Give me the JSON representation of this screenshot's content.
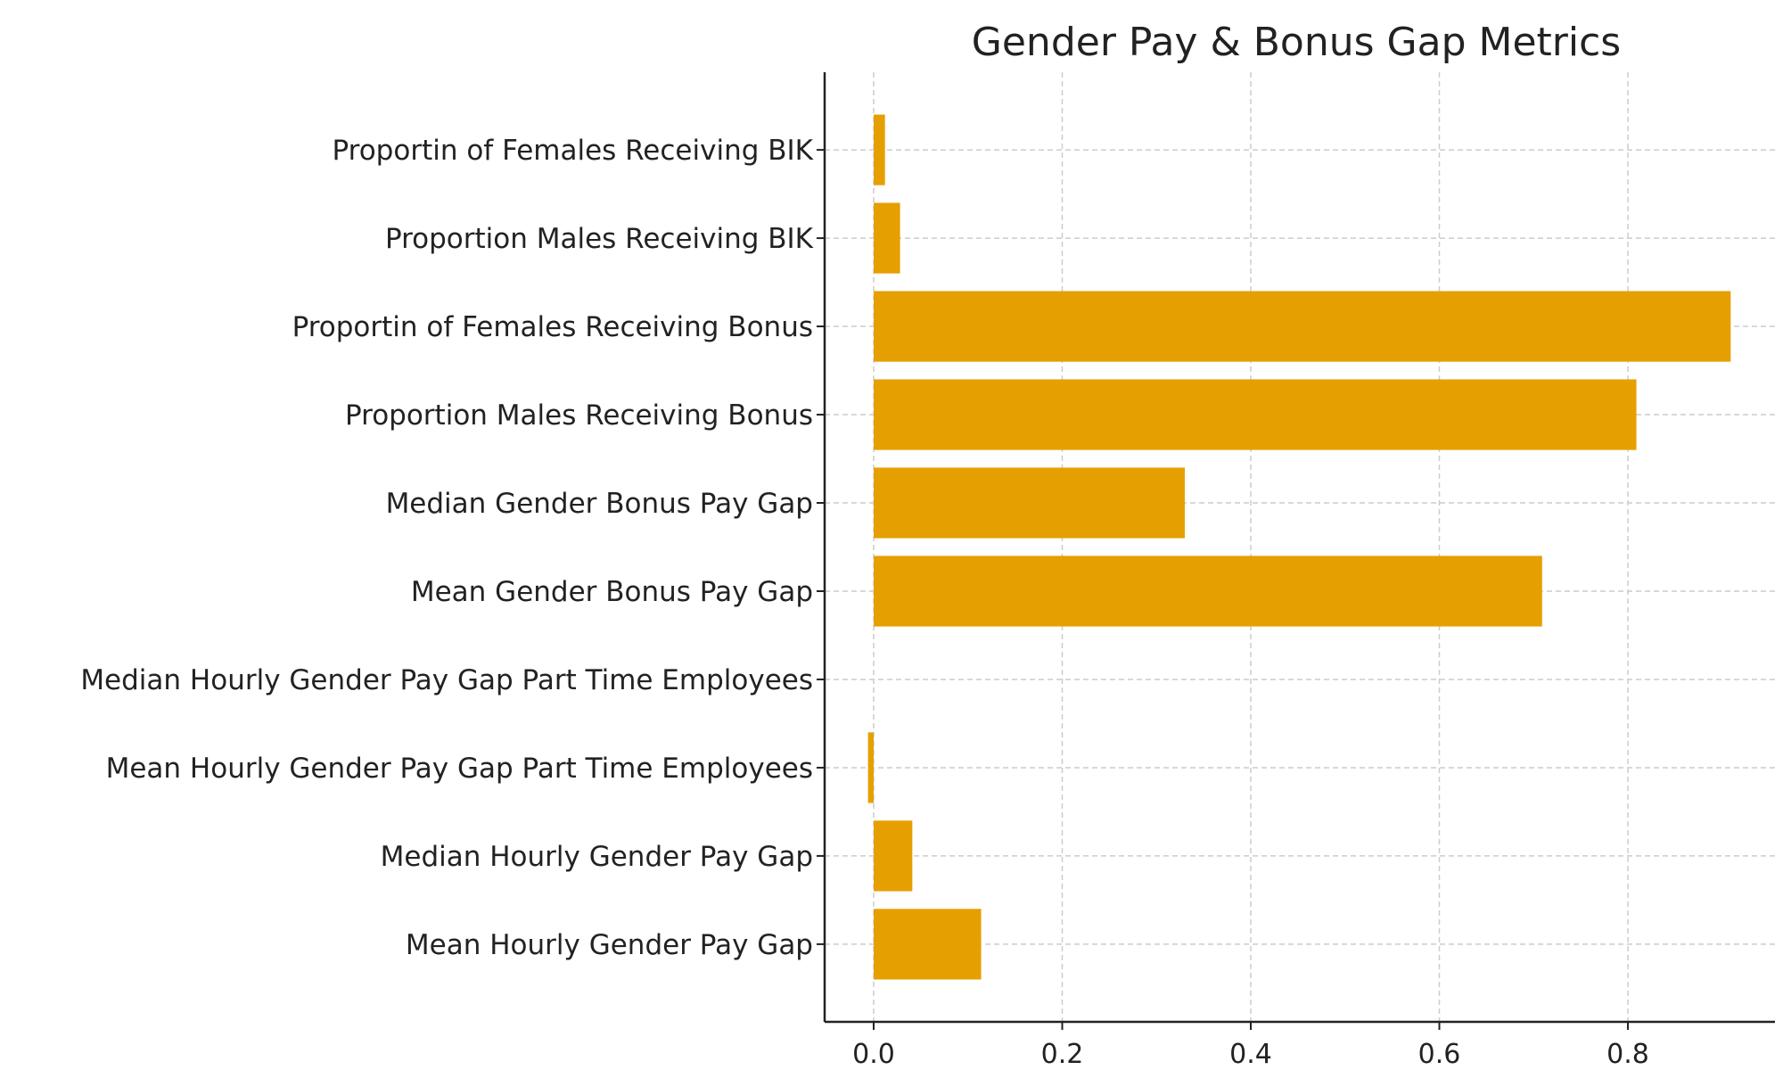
{
  "chart_data": {
    "type": "bar",
    "orientation": "horizontal",
    "title": "Gender Pay & Bonus Gap Metrics",
    "xlabel": "",
    "ylabel": "",
    "categories": [
      "Mean Hourly Gender Pay Gap",
      "Median Hourly Gender Pay Gap",
      "Mean Hourly Gender Pay Gap Part Time Employees",
      "Median Hourly Gender Pay Gap Part Time Employees",
      "Mean Gender Bonus Pay Gap",
      "Median Gender Bonus Pay Gap",
      "Proportion Males Receiving Bonus",
      "Proportin of Females Receiving Bonus",
      "Proportion Males Receiving BIK",
      "Proportin of Females Receiving BIK"
    ],
    "values": [
      0.114,
      0.041,
      -0.006,
      0.0,
      0.709,
      0.33,
      0.809,
      0.909,
      0.028,
      0.012
    ],
    "xlim": [
      -0.052,
      0.956
    ],
    "xticks": [
      0.0,
      0.2,
      0.4,
      0.6,
      0.8
    ],
    "xtick_labels": [
      "0.0",
      "0.2",
      "0.4",
      "0.6",
      "0.8"
    ],
    "grid": true,
    "grid_style": "dashed",
    "bar_color": "#E69F00",
    "legend": "none"
  }
}
